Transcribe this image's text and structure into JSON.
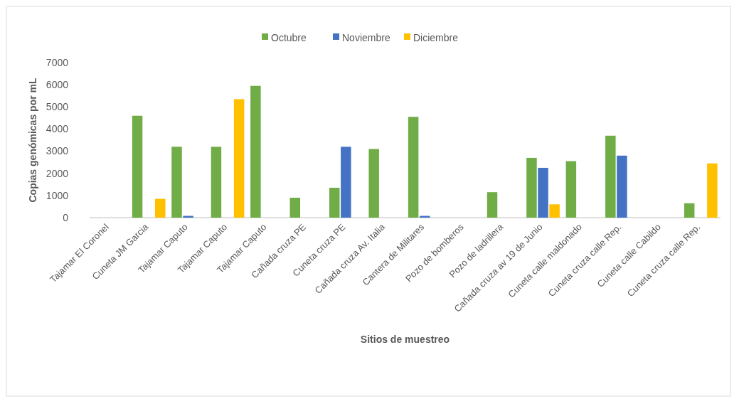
{
  "chart_data": {
    "type": "bar",
    "xlabel": "Sitios de muestreo",
    "ylabel": "Copias genómicas por mL",
    "categories": [
      "Tajamar El Coronel",
      "Cuneta JM Garcia",
      "Tajamar Caputo",
      "Tajamar Caputo",
      "Tajamar Caputo",
      "Cañada cruza PE",
      "Cuneta cruza PE",
      "Cañada cruza Av. Italia",
      "Cantera de Militares",
      "Pozo de bomberos",
      "Pozo de ladrillera",
      "Cañada cruza av 19 de Junio",
      "Cuneta calle maldonado",
      "Cuneta cruza calle Rep.",
      "Cuneta calle Cabildo",
      "Cuneta cruza calle Rep."
    ],
    "series": [
      {
        "name": "Octubre",
        "color": "#70ad47",
        "values": [
          null,
          4600,
          3200,
          3200,
          5950,
          900,
          1350,
          3100,
          4550,
          null,
          1150,
          2700,
          2550,
          3700,
          null,
          650
        ]
      },
      {
        "name": "Noviembre",
        "color": "#4472c4",
        "values": [
          null,
          null,
          80,
          null,
          null,
          null,
          3200,
          null,
          80,
          null,
          null,
          2250,
          null,
          2800,
          null,
          null
        ]
      },
      {
        "name": "Diciembre",
        "color": "#ffc000",
        "values": [
          null,
          850,
          null,
          5350,
          null,
          null,
          null,
          null,
          null,
          null,
          null,
          600,
          null,
          null,
          null,
          2450
        ]
      }
    ],
    "ylim": [
      0,
      7000
    ],
    "yticks": [
      0,
      1000,
      2000,
      3000,
      4000,
      5000,
      6000,
      7000
    ],
    "grid": false,
    "legend": "top"
  }
}
